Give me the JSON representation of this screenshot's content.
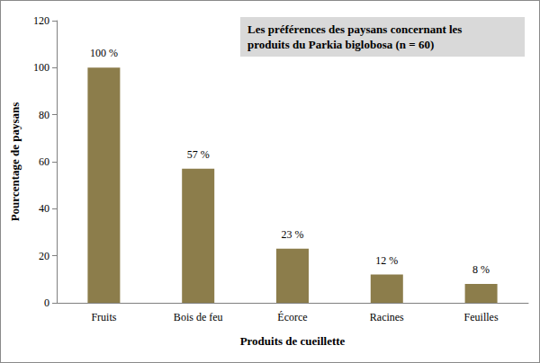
{
  "chart_data": {
    "type": "bar",
    "title": "Les préférences des paysans concernant les produits du Parkia biglobosa (n = 60)",
    "x_label": "Produits de cueillette",
    "y_label": "Pourcentage de paysans",
    "categories": [
      "Fruits",
      "Bois de feu",
      "Écorce",
      "Racines",
      "Feuilles"
    ],
    "values": [
      100,
      57,
      23,
      12,
      8
    ],
    "value_labels": [
      "100 %",
      "57 %",
      "23 %",
      "12 %",
      "8 %"
    ],
    "color": "#8c7d4b",
    "ylim": [
      0,
      120
    ],
    "yticks": [
      0,
      20,
      40,
      60,
      80,
      100,
      120
    ],
    "grid": false,
    "data_labels": true
  }
}
